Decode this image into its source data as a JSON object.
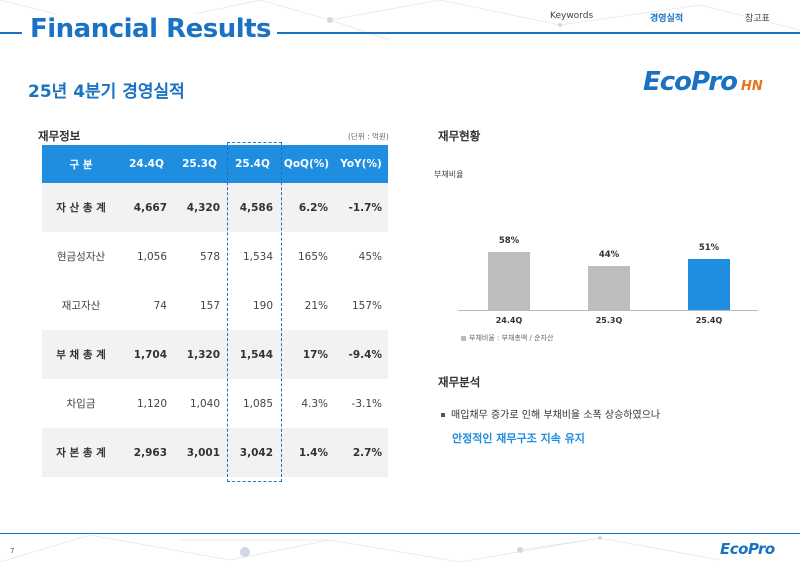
{
  "header": {
    "title": "Financial Results",
    "nav": [
      {
        "label": "Keywords",
        "active": false
      },
      {
        "label": "경영실적",
        "active": true
      },
      {
        "label": "참고표",
        "active": false
      }
    ]
  },
  "subtitle": "25년 4분기 경영실적",
  "logo": {
    "main": "EcoPro",
    "suffix": "HN"
  },
  "table_section": {
    "heading": "재무정보",
    "unit": "(단위 : 억원)",
    "columns": [
      "구 분",
      "24.4Q",
      "25.3Q",
      "25.4Q",
      "QoQ(%)",
      "YoY(%)"
    ],
    "rows": [
      {
        "label": "자 산 총 계",
        "values": [
          "4,667",
          "4,320",
          "4,586",
          "6.2%",
          "-1.7%"
        ],
        "style": "total"
      },
      {
        "label": "현금성자산",
        "values": [
          "1,056",
          "578",
          "1,534",
          "165%",
          "45%"
        ],
        "style": "sub"
      },
      {
        "label": "재고자산",
        "values": [
          "74",
          "157",
          "190",
          "21%",
          "157%"
        ],
        "style": "sub"
      },
      {
        "label": "부 채 총 계",
        "values": [
          "1,704",
          "1,320",
          "1,544",
          "17%",
          "-9.4%"
        ],
        "style": "total"
      },
      {
        "label": "차입금",
        "values": [
          "1,120",
          "1,040",
          "1,085",
          "4.3%",
          "-3.1%"
        ],
        "style": "sub"
      },
      {
        "label": "자 본 총 계",
        "values": [
          "2,963",
          "3,001",
          "3,042",
          "1.4%",
          "2.7%"
        ],
        "style": "total"
      }
    ]
  },
  "status_section": {
    "heading": "재무현황",
    "chart_title": "부채비율",
    "legend": "부채비율 : 부채총액 / 순자산"
  },
  "chart_data": {
    "type": "bar",
    "title": "부채비율",
    "categories": [
      "24.4Q",
      "25.3Q",
      "25.4Q"
    ],
    "values": [
      58,
      44,
      51
    ],
    "value_labels": [
      "58%",
      "44%",
      "51%"
    ],
    "colors": [
      "#bdbdbd",
      "#bdbdbd",
      "#1f8ee0"
    ],
    "ylim": [
      0,
      70
    ]
  },
  "analysis_section": {
    "heading": "재무분석",
    "bullet": "매입채무 증가로 인해 부채비율 소폭 상승하였으나",
    "highlight": "안정적인 재무구조 지속 유지"
  },
  "footer": {
    "page": "7",
    "logo": "EcoPro"
  }
}
